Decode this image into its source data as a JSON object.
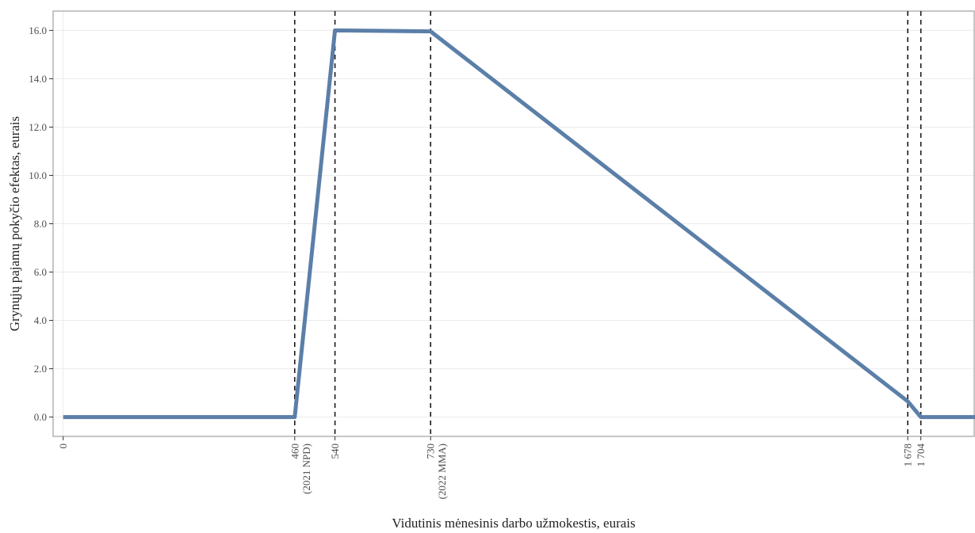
{
  "chart_data": {
    "type": "line",
    "xlabel": "Vidutinis mėnesinis darbo užmokestis, eurais",
    "ylabel": "Grynųjų pajamų pokyčio efektas, eurais",
    "xlim": [
      -20,
      1810
    ],
    "ylim": [
      -0.8,
      16.8
    ],
    "grid": true,
    "y_ticks": [
      {
        "value": 0,
        "label": "0.0"
      },
      {
        "value": 2,
        "label": "2.0"
      },
      {
        "value": 4,
        "label": "4.0"
      },
      {
        "value": 6,
        "label": "6.0"
      },
      {
        "value": 8,
        "label": "8.0"
      },
      {
        "value": 10,
        "label": "10.0"
      },
      {
        "value": 12,
        "label": "12.0"
      },
      {
        "value": 14,
        "label": "14.0"
      },
      {
        "value": 16,
        "label": "16.0"
      }
    ],
    "x_ticks": [
      {
        "value": 0,
        "label": "0",
        "sublabel": ""
      },
      {
        "value": 460,
        "label": "460",
        "sublabel": "(2021 NPD)"
      },
      {
        "value": 540,
        "label": "540",
        "sublabel": ""
      },
      {
        "value": 730,
        "label": "730",
        "sublabel": "(2022 MMA)"
      },
      {
        "value": 1678,
        "label": "1 678",
        "sublabel": ""
      },
      {
        "value": 1704,
        "label": "1 704",
        "sublabel": ""
      }
    ],
    "vlines": [
      460,
      540,
      730,
      1678,
      1704
    ],
    "series": [
      {
        "color": "#5b7fa8",
        "x": [
          0,
          460,
          540,
          730,
          1678,
          1704,
          2000
        ],
        "y": [
          0,
          0,
          16,
          15.96,
          0.65,
          0,
          0
        ]
      }
    ]
  }
}
